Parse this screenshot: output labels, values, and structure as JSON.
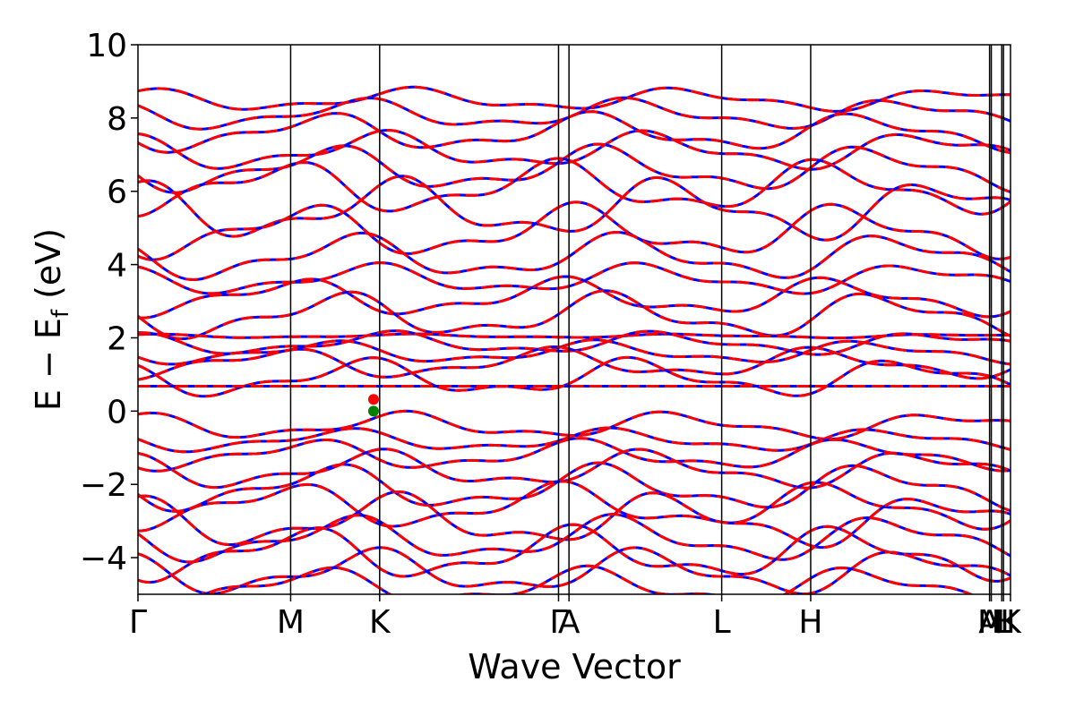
{
  "chart_data": {
    "type": "line",
    "title": "",
    "xlabel": "Wave Vector",
    "ylabel_parts": {
      "main": "E − E",
      "sub": "f",
      "unit": " (eV)"
    },
    "ylim": [
      -5,
      10
    ],
    "yticks": [
      -4,
      -2,
      0,
      2,
      4,
      6,
      8,
      10
    ],
    "ytick_labels": [
      "−4",
      "−2",
      "0",
      "2",
      "4",
      "6",
      "8",
      "10"
    ],
    "xlim": [
      0,
      1
    ],
    "kpoint_labels": [
      "Γ",
      "M",
      "K",
      "Γ",
      "A",
      "L",
      "H",
      "A",
      "M",
      "L",
      "H",
      "K"
    ],
    "kpoint_positions": [
      0.0,
      0.175,
      0.277,
      0.482,
      0.494,
      0.669,
      0.771,
      0.976,
      0.978,
      0.99,
      0.992,
      1.0
    ],
    "series": [
      {
        "name": "",
        "color": "#0000ff",
        "style": "solid"
      },
      {
        "name": "",
        "color": "#ff0000",
        "style": "dashed"
      }
    ],
    "flat_band_energy": 0.68,
    "valence_band_max": {
      "x": 0.27,
      "y": 0.0,
      "color": "#008000"
    },
    "conduction_band_min": {
      "x": 0.27,
      "y": 0.32,
      "color": "#ff0000"
    },
    "bands": [
      {
        "e0": 8.5,
        "amp": 0.3,
        "phase": 0.0
      },
      {
        "e0": 8.1,
        "amp": 0.4,
        "phase": 1.2
      },
      {
        "e0": 7.6,
        "amp": 0.5,
        "phase": 2.1
      },
      {
        "e0": 7.1,
        "amp": 0.5,
        "phase": 0.7
      },
      {
        "e0": 6.6,
        "amp": 0.6,
        "phase": 1.9
      },
      {
        "e0": 6.1,
        "amp": 0.7,
        "phase": 3.0
      },
      {
        "e0": 5.5,
        "amp": 0.8,
        "phase": 0.3
      },
      {
        "e0": 4.9,
        "amp": 0.7,
        "phase": 2.5
      },
      {
        "e0": 4.2,
        "amp": 0.6,
        "phase": 1.4
      },
      {
        "e0": 3.6,
        "amp": 0.4,
        "phase": 0.9
      },
      {
        "e0": 3.1,
        "amp": 0.5,
        "phase": 2.8
      },
      {
        "e0": 2.6,
        "amp": 0.6,
        "phase": 1.7
      },
      {
        "e0": 2.05,
        "amp": 0.05,
        "phase": 0.0
      },
      {
        "e0": 1.85,
        "amp": 0.3,
        "phase": 0.5
      },
      {
        "e0": 1.6,
        "amp": 0.3,
        "phase": 2.0
      },
      {
        "e0": 1.3,
        "amp": 0.4,
        "phase": 3.1
      },
      {
        "e0": 0.9,
        "amp": 0.5,
        "phase": 1.1
      },
      {
        "e0": -0.4,
        "amp": 0.35,
        "phase": 0.2
      },
      {
        "e0": -0.8,
        "amp": 0.3,
        "phase": 1.6
      },
      {
        "e0": -1.2,
        "amp": 0.4,
        "phase": 2.4
      },
      {
        "e0": -1.6,
        "amp": 0.5,
        "phase": 0.8
      },
      {
        "e0": -2.1,
        "amp": 0.6,
        "phase": 1.9
      },
      {
        "e0": -2.6,
        "amp": 0.6,
        "phase": 2.9
      },
      {
        "e0": -3.0,
        "amp": 0.7,
        "phase": 0.4
      },
      {
        "e0": -3.5,
        "amp": 0.6,
        "phase": 1.5
      },
      {
        "e0": -3.9,
        "amp": 0.7,
        "phase": 2.6
      },
      {
        "e0": -4.4,
        "amp": 0.6,
        "phase": 0.9
      },
      {
        "e0": -4.8,
        "amp": 0.5,
        "phase": 2.2
      }
    ]
  }
}
